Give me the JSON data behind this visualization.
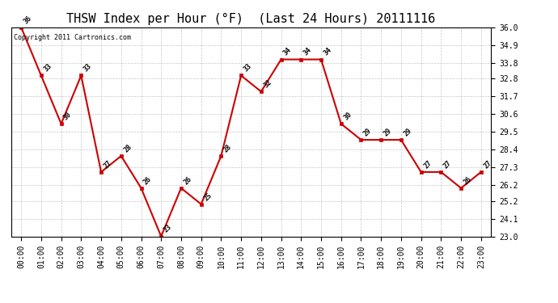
{
  "title": "THSW Index per Hour (°F)  (Last 24 Hours) 20111116",
  "copyright_text": "Copyright 2011 Cartronics.com",
  "hours": [
    "00:00",
    "01:00",
    "02:00",
    "03:00",
    "04:00",
    "05:00",
    "06:00",
    "07:00",
    "08:00",
    "09:00",
    "10:00",
    "11:00",
    "12:00",
    "13:00",
    "14:00",
    "15:00",
    "16:00",
    "17:00",
    "18:00",
    "19:00",
    "20:00",
    "21:00",
    "22:00",
    "23:00"
  ],
  "values": [
    36,
    33,
    30,
    33,
    27,
    28,
    26,
    23,
    26,
    25,
    28,
    33,
    32,
    34,
    34,
    34,
    30,
    29,
    29,
    29,
    27,
    27,
    26,
    27
  ],
  "ylim_min": 23.0,
  "ylim_max": 36.0,
  "yticks": [
    23.0,
    24.1,
    25.2,
    26.2,
    27.3,
    28.4,
    29.5,
    30.6,
    31.7,
    32.8,
    33.8,
    34.9,
    36.0
  ],
  "line_color": "#cc0000",
  "marker_color": "#cc0000",
  "bg_color": "#ffffff",
  "plot_bg_color": "#ffffff",
  "grid_color": "#c8c8c8",
  "title_fontsize": 11,
  "tick_fontsize": 7,
  "annotation_fontsize": 6,
  "copyright_fontsize": 6
}
